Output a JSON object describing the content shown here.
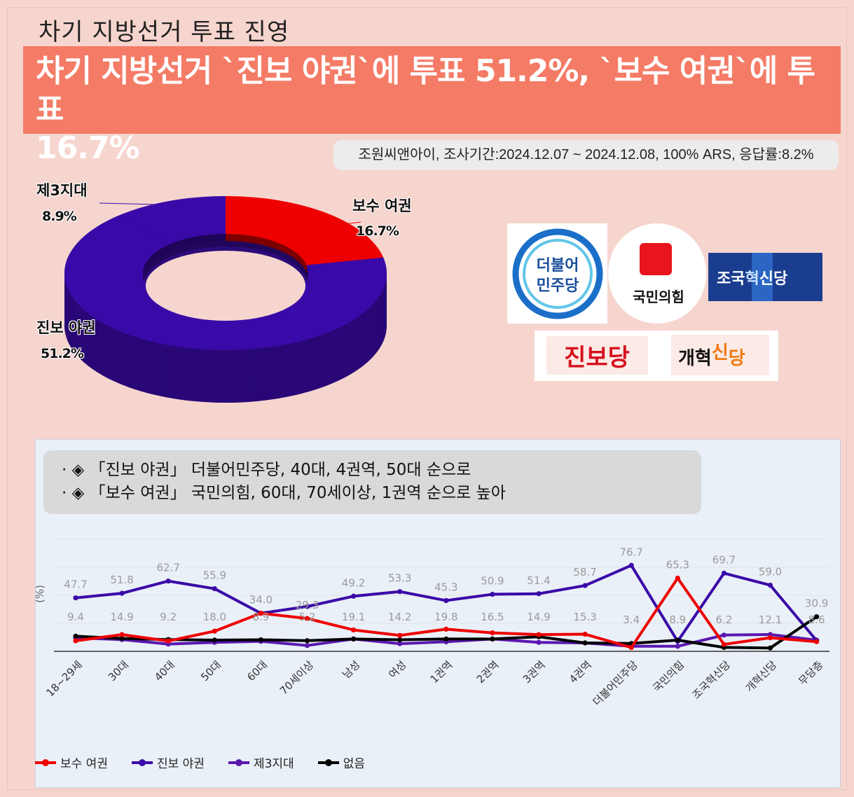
{
  "page": {
    "top_title": "차기 지방선거 투표 진영",
    "headline_line1": "차기 지방선거 `진보 야권`에 투표 51.2%, `보수 여권`에 투표",
    "headline_line2": "16.7%",
    "survey_info": "조원씨앤아이, 조사기간:2024.12.07 ~ 2024.12.08, 100% ARS, 응답률:8.2%"
  },
  "colors": {
    "conservative": "#ee0000",
    "progressive": "#3a0aa8",
    "third": "#5a18b0",
    "none": "#000000",
    "headline_bg": "#f47b66"
  },
  "logos": {
    "democratic": {
      "line1": "더불어",
      "line2": "민주당",
      "icon": "democratic-party-logo"
    },
    "ppp": {
      "text": "국민의힘",
      "icon": "people-power-party-logo"
    },
    "rebuilding": {
      "text_a": "조국",
      "text_b": "혁",
      "text_c": "신당",
      "icon": "rebuilding-korea-party-logo"
    },
    "progressive_party": {
      "text": "진보당",
      "icon": "progressive-party-logo"
    },
    "reform": {
      "text_a": "개혁",
      "text_b": "신",
      "text_c": "당",
      "icon": "reform-party-logo"
    }
  },
  "bullets": [
    "· ◈ 「진보 야권」 더불어민주당, 40대, 4권역, 50대 순으로",
    "· ◈ 「보수 여권」 국민의힘, 60대, 70세이상, 1권역 순으로 높아"
  ],
  "chart_data": [
    {
      "type": "pie",
      "style": "donut-3d",
      "slices": [
        {
          "label": "보수 여권",
          "value": 16.7,
          "display": "16.7%",
          "color": "#ee0000"
        },
        {
          "label": "진보 야권",
          "value": 51.2,
          "display": "51.2%",
          "color": "#3a0aa8"
        },
        {
          "label": "제3지대",
          "value": 8.9,
          "display": "8.9%",
          "color": "#3a0aa8"
        }
      ]
    },
    {
      "type": "line",
      "ylabel": "(%)",
      "ylim": [
        0,
        100
      ],
      "grid": true,
      "legend_position": "bottom-left",
      "categories": [
        "18~29세",
        "30대",
        "40대",
        "50대",
        "60대",
        "70세이상",
        "남성",
        "여성",
        "1권역",
        "2권역",
        "3권역",
        "4권역",
        "더불어민주당",
        "국민의힘",
        "조국혁신당",
        "개혁신당",
        "무당층"
      ],
      "series": [
        {
          "name": "보수 여권",
          "color": "#ee0000",
          "values": [
            9.4,
            14.9,
            9.2,
            18.0,
            34.0,
            29.3,
            19.1,
            14.2,
            19.8,
            16.5,
            14.9,
            15.3,
            3.4,
            65.3,
            6.2,
            12.1,
            8.6
          ],
          "labeled": true
        },
        {
          "name": "진보 야권",
          "color": "#3a0aa8",
          "values": [
            47.7,
            51.8,
            62.7,
            55.9,
            34.0,
            40.0,
            49.2,
            53.3,
            45.3,
            50.9,
            51.4,
            58.7,
            76.7,
            8.9,
            69.7,
            59.0,
            9.6
          ],
          "labeled": true
        },
        {
          "name": "제3지대",
          "color": "#5a18b0",
          "values": [
            12.0,
            10.5,
            6.5,
            8.0,
            8.9,
            5.2,
            11.0,
            6.8,
            8.5,
            11.0,
            8.0,
            7.5,
            4.5,
            4.5,
            14.5,
            15.0,
            10.0
          ],
          "labeled": false
        },
        {
          "name": "없음",
          "color": "#000000",
          "values": [
            13.5,
            11.5,
            10.5,
            10.0,
            10.3,
            9.5,
            11.0,
            10.3,
            11.0,
            11.0,
            13.0,
            7.5,
            7.0,
            10.0,
            3.5,
            3.0,
            30.9
          ],
          "labeled": false
        }
      ],
      "data_labels": [
        {
          "i": 0,
          "text": "47.7",
          "v": 47.7
        },
        {
          "i": 1,
          "text": "51.8",
          "v": 51.8
        },
        {
          "i": 2,
          "text": "62.7",
          "v": 62.7
        },
        {
          "i": 3,
          "text": "55.9",
          "v": 55.9
        },
        {
          "i": 4,
          "text": "34.0",
          "v": 34.0
        },
        {
          "i": 5,
          "text": "29.3",
          "v": 29.3
        },
        {
          "i": 6,
          "text": "49.2",
          "v": 49.2
        },
        {
          "i": 7,
          "text": "53.3",
          "v": 53.3
        },
        {
          "i": 8,
          "text": "45.3",
          "v": 45.3
        },
        {
          "i": 9,
          "text": "50.9",
          "v": 50.9
        },
        {
          "i": 10,
          "text": "51.4",
          "v": 51.4
        },
        {
          "i": 11,
          "text": "58.7",
          "v": 58.7
        },
        {
          "i": 12,
          "text": "76.7",
          "v": 76.7
        },
        {
          "i": 13,
          "text": "65.3",
          "v": 65.3
        },
        {
          "i": 14,
          "text": "69.7",
          "v": 69.7
        },
        {
          "i": 15,
          "text": "59.0",
          "v": 59.0
        },
        {
          "i": 16,
          "text": "30.9",
          "v": 30.9
        },
        {
          "i": 0,
          "text": "9.4",
          "v": 9.4
        },
        {
          "i": 1,
          "text": "14.9",
          "v": 14.9
        },
        {
          "i": 2,
          "text": "9.2",
          "v": 9.2
        },
        {
          "i": 3,
          "text": "18.0",
          "v": 18.0
        },
        {
          "i": 4,
          "text": "8.9",
          "v": 8.9
        },
        {
          "i": 5,
          "text": "5.2",
          "v": 5.2
        },
        {
          "i": 6,
          "text": "19.1",
          "v": 19.1
        },
        {
          "i": 7,
          "text": "14.2",
          "v": 14.2
        },
        {
          "i": 8,
          "text": "19.8",
          "v": 19.8
        },
        {
          "i": 9,
          "text": "16.5",
          "v": 16.5
        },
        {
          "i": 10,
          "text": "14.9",
          "v": 14.9
        },
        {
          "i": 11,
          "text": "15.3",
          "v": 15.3
        },
        {
          "i": 12,
          "text": "3.4",
          "v": 3.4
        },
        {
          "i": 13,
          "text": "8.9",
          "v": 8.9
        },
        {
          "i": 14,
          "text": "6.2",
          "v": 6.2
        },
        {
          "i": 15,
          "text": "12.1",
          "v": 12.1
        },
        {
          "i": 16,
          "text": "8.6",
          "v": 8.6
        }
      ]
    }
  ]
}
